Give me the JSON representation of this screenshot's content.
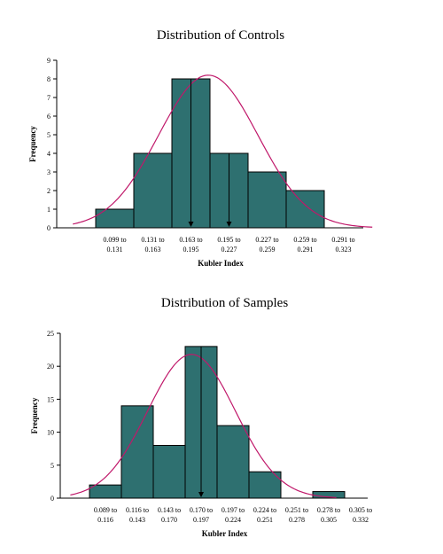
{
  "colors": {
    "bar": "#2E7070",
    "curve": "#C0186A"
  },
  "chart_data": [
    {
      "type": "bar",
      "title": "Distribution of Controls",
      "xlabel": "Kubler Index",
      "ylabel": "Frequency",
      "ylim": [
        0,
        9
      ],
      "yticks": [
        0,
        1,
        2,
        3,
        4,
        5,
        6,
        7,
        8,
        9
      ],
      "grid": false,
      "categories": [
        {
          "line1": "0.099 to",
          "line2": "0.131"
        },
        {
          "line1": "0.131 to",
          "line2": "0.163"
        },
        {
          "line1": "0.163 to",
          "line2": "0.195"
        },
        {
          "line1": "0.195 to",
          "line2": "0.227"
        },
        {
          "line1": "0.227 to",
          "line2": "0.259"
        },
        {
          "line1": "0.259 to",
          "line2": "0.291"
        },
        {
          "line1": "0.291 to",
          "line2": "0.323"
        }
      ],
      "values": [
        1,
        4,
        8,
        4,
        3,
        2,
        0
      ],
      "curve_peak": 8.2,
      "markers": [
        {
          "bin": 2,
          "frac": 0.5
        },
        {
          "bin": 3,
          "frac": 0.5
        }
      ]
    },
    {
      "type": "bar",
      "title": "Distribution of Samples",
      "xlabel": "Kubler Index",
      "ylabel": "Frequency",
      "ylim": [
        0,
        25
      ],
      "yticks": [
        0,
        5,
        10,
        15,
        20,
        25
      ],
      "grid": false,
      "categories": [
        {
          "line1": "0.089 to",
          "line2": "0.116"
        },
        {
          "line1": "0.116 to",
          "line2": "0.143"
        },
        {
          "line1": "0.143 to",
          "line2": "0.170"
        },
        {
          "line1": "0.170 to",
          "line2": "0.197"
        },
        {
          "line1": "0.197 to",
          "line2": "0.224"
        },
        {
          "line1": "0.224 to",
          "line2": "0.251"
        },
        {
          "line1": "0.251 to",
          "line2": "0.278"
        },
        {
          "line1": "0.278 to",
          "line2": "0.305"
        },
        {
          "line1": "0.305 to",
          "line2": "0.332"
        }
      ],
      "values": [
        2,
        14,
        8,
        23,
        11,
        4,
        0,
        1,
        0
      ],
      "curve_peak": 21.8,
      "markers": [
        {
          "bin": 3,
          "frac": 0.5
        }
      ]
    }
  ]
}
